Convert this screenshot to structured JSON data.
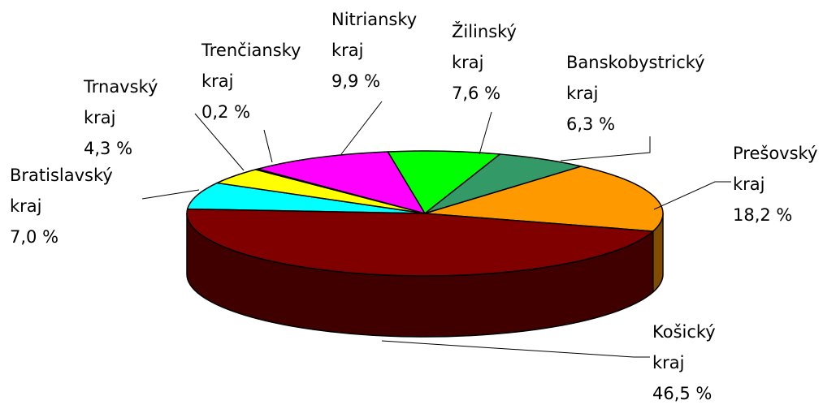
{
  "chart_data": {
    "type": "pie",
    "categories": [
      "Bratislavský kraj",
      "Trnavský kraj",
      "Trenčiansky kraj",
      "Nitriansky kraj",
      "Žilinský kraj",
      "Banskobystrický kraj",
      "Prešovský kraj",
      "Košický kraj"
    ],
    "values": [
      7.0,
      4.3,
      0.2,
      9.9,
      7.6,
      6.3,
      18.2,
      46.5
    ],
    "value_labels": [
      "7,0 %",
      "4,3 %",
      "0,2 %",
      "9,9 %",
      "7,6 %",
      "6,3 %",
      "18,2 %",
      "46,5 %"
    ],
    "colors": [
      "#00ffff",
      "#ffff00",
      "#800080",
      "#ff00ff",
      "#00ff00",
      "#339966",
      "#ff9900",
      "#800000"
    ]
  }
}
